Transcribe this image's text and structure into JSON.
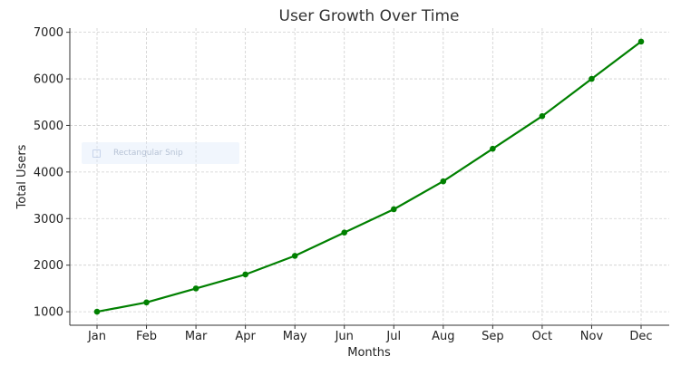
{
  "chart_data": {
    "type": "line",
    "title": "User Growth Over Time",
    "xlabel": "Months",
    "ylabel": "Total Users",
    "categories": [
      "Jan",
      "Feb",
      "Mar",
      "Apr",
      "May",
      "Jun",
      "Jul",
      "Aug",
      "Sep",
      "Oct",
      "Nov",
      "Dec"
    ],
    "values": [
      1000,
      1200,
      1500,
      1800,
      2200,
      2700,
      3200,
      3800,
      4500,
      5200,
      6000,
      6800
    ],
    "yticks": [
      1000,
      2000,
      3000,
      4000,
      5000,
      6000,
      7000
    ],
    "ylim": [
      710,
      7090
    ],
    "grid": true,
    "line_color": "#008000",
    "marker": "circle"
  },
  "overlay": {
    "label": "Rectangular Snip",
    "icon": "scissors-icon"
  }
}
